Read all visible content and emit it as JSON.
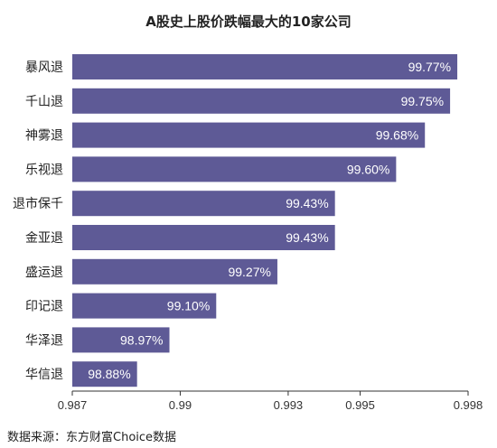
{
  "chart_data": {
    "type": "bar",
    "orientation": "horizontal",
    "title": "A股史上股价跌幅最大的10家公司",
    "categories": [
      "暴风退",
      "千山退",
      "神雾退",
      "乐视退",
      "退市保千",
      "金亚退",
      "盛运退",
      "印记退",
      "华泽退",
      "华信退"
    ],
    "values": [
      0.9977,
      0.9975,
      0.9968,
      0.996,
      0.9943,
      0.9943,
      0.9927,
      0.991,
      0.9897,
      0.9888
    ],
    "value_labels": [
      "99.77%",
      "99.75%",
      "99.68%",
      "99.60%",
      "99.43%",
      "99.43%",
      "99.27%",
      "99.10%",
      "98.97%",
      "98.88%"
    ],
    "xlim": [
      0.987,
      0.998
    ],
    "x_ticks": [
      0.987,
      0.99,
      0.993,
      0.995,
      0.998
    ],
    "x_tick_labels": [
      "0.987",
      "0.99",
      "0.993",
      "0.995",
      "0.998"
    ],
    "xlabel": "",
    "ylabel": "",
    "grid": false,
    "legend": "none",
    "bar_color": "#5e5a96",
    "value_label_color": "#ffffff",
    "source_note": "数据来源：东方财富Choice数据"
  }
}
